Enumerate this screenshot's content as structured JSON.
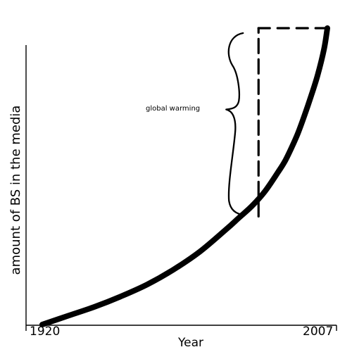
{
  "chart_data": {
    "type": "line",
    "title": "",
    "xlabel": "Year",
    "ylabel": "amount of BS in the media",
    "x_tick_labels": [
      "1920",
      "2007"
    ],
    "xlim": [
      1920,
      2007
    ],
    "ylim": [
      0,
      100
    ],
    "grid": false,
    "legend": "none",
    "series": [
      {
        "x": [
          1920,
          1928,
          1936,
          1944,
          1952,
          1960,
          1968,
          1976,
          1980,
          1984,
          1988,
          1992,
          1994,
          1996,
          1998,
          2000,
          2002,
          2004,
          2006,
          2007
        ],
        "y": [
          0,
          3,
          6,
          9.5,
          13.5,
          18.5,
          24.5,
          32,
          36,
          40,
          45,
          51.5,
          55,
          59.5,
          64.5,
          70.5,
          77,
          84,
          93,
          100
        ]
      }
    ],
    "annotations": [
      {
        "text": "global warming",
        "x_range": [
          1986,
          2007
        ],
        "y_range": [
          36.5,
          100
        ]
      }
    ]
  }
}
